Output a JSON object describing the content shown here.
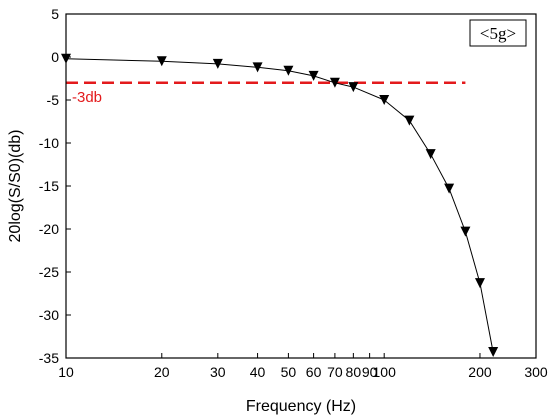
{
  "chart_data": {
    "type": "line",
    "title": "",
    "badge": "<5g>",
    "xlabel": "Frequency (Hz)",
    "ylabel": "20log(S/S0)(db)",
    "xscale": "log",
    "xlim": [
      10,
      300
    ],
    "ylim": [
      -35,
      5
    ],
    "x_ticks": [
      10,
      20,
      30,
      40,
      50,
      60,
      70,
      80,
      90,
      100,
      200,
      300
    ],
    "x_tick_labels": [
      "10",
      "20",
      "30",
      "40",
      "50",
      "60",
      "70",
      "80",
      "90",
      "100",
      "200",
      "300"
    ],
    "y_ticks": [
      5,
      0,
      -5,
      -10,
      -15,
      -20,
      -25,
      -30,
      -35
    ],
    "y_tick_labels": [
      "5",
      "0",
      "-5",
      "-10",
      "-15",
      "-20",
      "-25",
      "-30",
      "-35"
    ],
    "grid": false,
    "series": [
      {
        "marker": "down-triangle",
        "color": "#000000",
        "x": [
          10,
          20,
          30,
          40,
          50,
          60,
          70,
          80,
          100,
          120,
          140,
          160,
          180,
          200,
          220
        ],
        "y": [
          -0.2,
          -0.5,
          -0.8,
          -1.2,
          -1.6,
          -2.2,
          -3.0,
          -3.5,
          -5.0,
          -7.4,
          -11.3,
          -15.3,
          -20.3,
          -26.3,
          -34.3
        ]
      }
    ],
    "reference_line": {
      "y": -3,
      "x_range": [
        10,
        180
      ],
      "label": "-3db",
      "color": "#e31a1c",
      "style": "dashed"
    }
  }
}
